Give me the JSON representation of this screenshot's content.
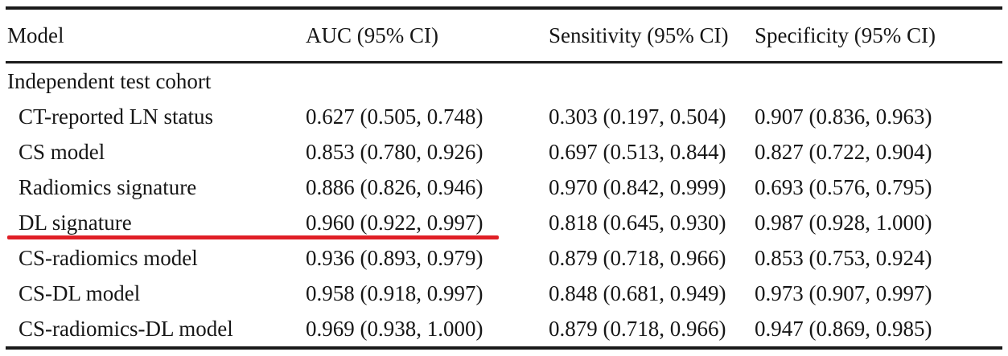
{
  "page": {
    "background": "#ffffff",
    "text_color": "#161616",
    "rule_color": "#1b1b1b"
  },
  "table": {
    "columns": {
      "model": "Model",
      "auc": "AUC (95% CI)",
      "sensitivity": "Sensitivity (95% CI)",
      "specificity": "Specificity (95% CI)"
    },
    "section_label": "Independent test cohort",
    "rows": [
      {
        "model": "CT-reported LN status",
        "auc": "0.627 (0.505, 0.748)",
        "sensitivity": "0.303 (0.197, 0.504)",
        "specificity": "0.907 (0.836, 0.963)"
      },
      {
        "model": "CS model",
        "auc": "0.853 (0.780, 0.926)",
        "sensitivity": "0.697 (0.513, 0.844)",
        "specificity": "0.827 (0.722, 0.904)"
      },
      {
        "model": "Radiomics signature",
        "auc": "0.886 (0.826, 0.946)",
        "sensitivity": "0.970 (0.842, 0.999)",
        "specificity": "0.693 (0.576, 0.795)"
      },
      {
        "model": "DL signature",
        "auc": "0.960 (0.922, 0.997)",
        "sensitivity": "0.818 (0.645, 0.930)",
        "specificity": "0.987 (0.928, 1.000)"
      },
      {
        "model": "CS-radiomics model",
        "auc": "0.936 (0.893, 0.979)",
        "sensitivity": "0.879 (0.718, 0.966)",
        "specificity": "0.853 (0.753, 0.924)"
      },
      {
        "model": "CS-DL model",
        "auc": "0.958 (0.918, 0.997)",
        "sensitivity": "0.848 (0.681, 0.949)",
        "specificity": "0.973 (0.907, 0.997)"
      },
      {
        "model": "CS-radiomics-DL model",
        "auc": "0.969 (0.938, 1.000)",
        "sensitivity": "0.879 (0.718, 0.966)",
        "specificity": "0.947 (0.869, 0.985)"
      }
    ]
  },
  "annotation": {
    "red_underline_color": "#e01f26",
    "red_underline_target_row": "DL signature"
  }
}
